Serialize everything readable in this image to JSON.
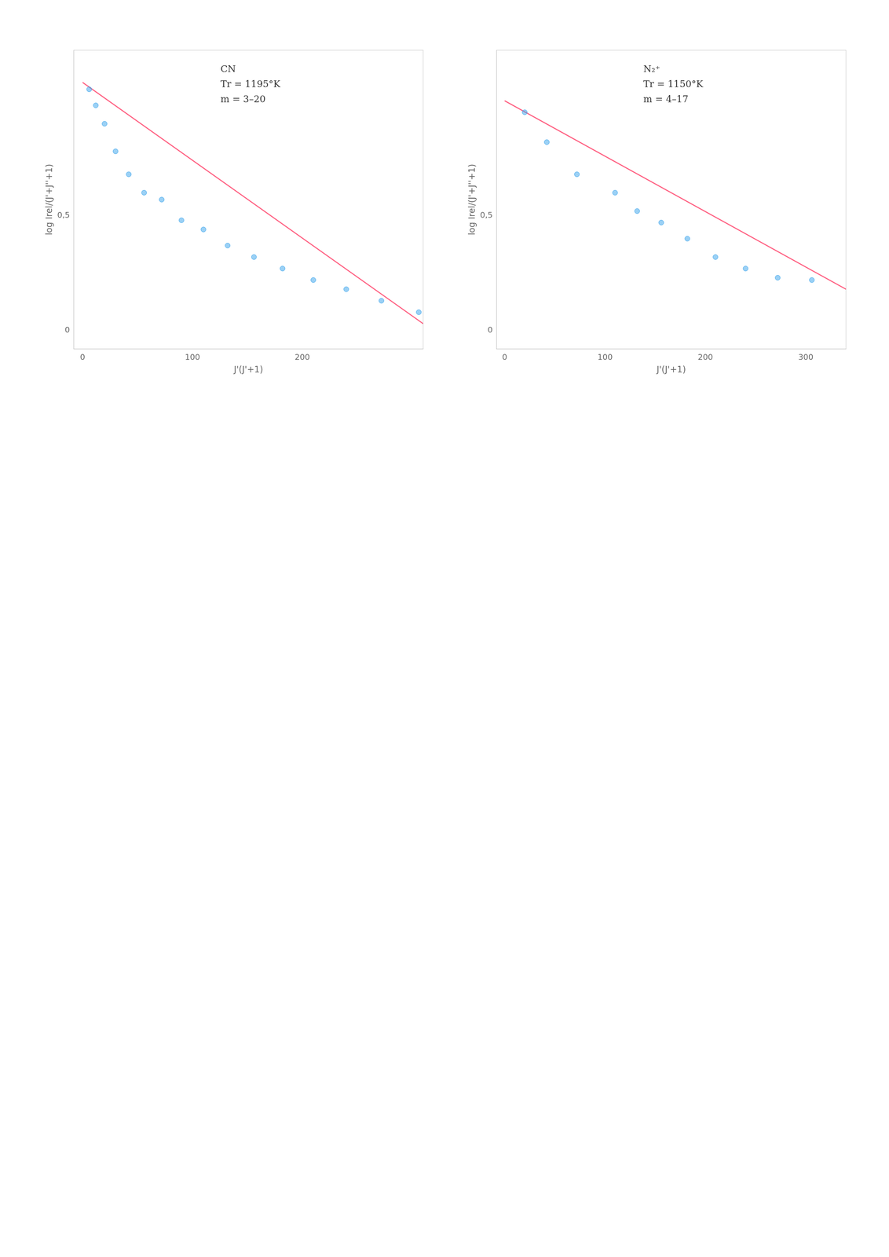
{
  "chart_data": [
    {
      "type": "scatter",
      "annotation": "CN\nTr = 1195°K\nm = 3–20",
      "xlabel": "J'(J'+1)",
      "ylabel": "log Irel/(J'+J''+1)",
      "xlim": [
        -8,
        310
      ],
      "xticks": [
        0,
        100,
        200
      ],
      "ylim": [
        -0.08,
        1.22
      ],
      "yticks": [
        0,
        {
          "value": 0.5,
          "label": "0,5"
        }
      ],
      "grid": false,
      "series": [
        {
          "type": "scatter",
          "x": [
            6,
            12,
            20,
            30,
            42,
            56,
            72,
            90,
            110,
            132,
            156,
            182,
            210,
            240,
            272,
            306
          ],
          "values": [
            1.05,
            0.98,
            0.9,
            0.78,
            0.68,
            0.6,
            0.57,
            0.48,
            0.44,
            0.37,
            0.32,
            0.27,
            0.22,
            0.18,
            0.13,
            0.08
          ]
        },
        {
          "type": "line",
          "x": [
            0,
            310
          ],
          "values": [
            1.08,
            0.03
          ]
        }
      ]
    },
    {
      "type": "scatter",
      "annotation": "N₂⁺\nTr = 1150°K\nm = 4–17",
      "xlabel": "J'(J'+1)",
      "ylabel": "log Irel/(J'+J''+1)",
      "xlim": [
        -8,
        340
      ],
      "xticks": [
        0,
        100,
        200,
        300
      ],
      "ylim": [
        -0.08,
        1.22
      ],
      "yticks": [
        0,
        {
          "value": 0.5,
          "label": "0,5"
        }
      ],
      "grid": false,
      "series": [
        {
          "type": "scatter",
          "x": [
            20,
            42,
            72,
            110,
            132,
            156,
            182,
            210,
            240,
            272,
            306
          ],
          "values": [
            0.95,
            0.82,
            0.68,
            0.6,
            0.52,
            0.47,
            0.4,
            0.32,
            0.27,
            0.23,
            0.22
          ]
        },
        {
          "type": "line",
          "x": [
            0,
            340
          ],
          "values": [
            1.0,
            0.18
          ]
        }
      ]
    }
  ]
}
